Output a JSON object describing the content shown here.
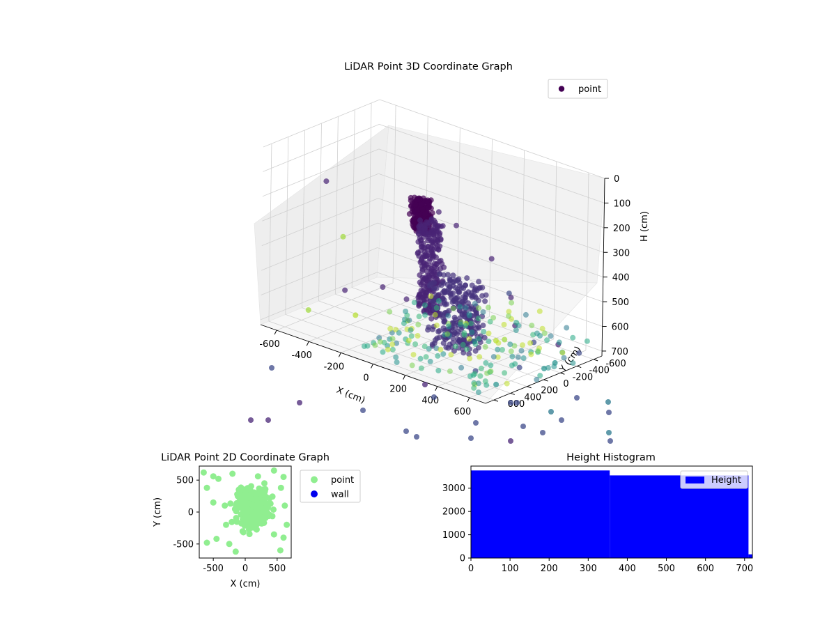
{
  "chart_data": [
    {
      "type": "scatter",
      "subtype": "3d",
      "title": "LiDAR Point 3D Coordinate Graph",
      "xlabel": "X (cm)",
      "ylabel": "Y (cm)",
      "zlabel": "H (cm)",
      "xlim": [
        -700,
        700
      ],
      "ylim": [
        -700,
        700
      ],
      "zlim": [
        0,
        720
      ],
      "z_axis_inverted": true,
      "xticks": [
        -600,
        -400,
        -200,
        0,
        200,
        400,
        600
      ],
      "yticks": [
        -600,
        -400,
        -200,
        0,
        200,
        400,
        600
      ],
      "zticks": [
        0,
        100,
        200,
        300,
        400,
        500,
        600,
        700
      ],
      "grid": true,
      "legend": [
        "point"
      ],
      "legend_position": "top-right",
      "colormap": "viridis",
      "series": [
        {
          "name": "point",
          "color": "#440154",
          "clusters": [
            {
              "x": [
                -60,
                40
              ],
              "y": [
                80,
                180
              ],
              "h": [
                130,
                260
              ],
              "color": "#440154"
            },
            {
              "x": [
                -30,
                90
              ],
              "y": [
                20,
                150
              ],
              "h": [
                220,
                600
              ],
              "color": "#482475"
            },
            {
              "x": [
                60,
                330
              ],
              "y": [
                -40,
                180
              ],
              "h": [
                420,
                700
              ],
              "color": "#46337e"
            }
          ],
          "points": [
            {
              "x": -450,
              "y": 420,
              "h": 120,
              "color": "#482475"
            },
            {
              "x": -300,
              "y": 500,
              "h": 300,
              "color": "#9fda3a"
            },
            {
              "x": 300,
              "y": 520,
              "h": 60,
              "color": "#482475"
            },
            {
              "x": 430,
              "y": 560,
              "h": 80,
              "color": "#482475"
            },
            {
              "x": 560,
              "y": 380,
              "h": 210,
              "color": "#482475"
            },
            {
              "x": 600,
              "y": 240,
              "h": 360,
              "color": "#3e4a89"
            },
            {
              "x": 520,
              "y": 60,
              "h": 420,
              "color": "#482475"
            },
            {
              "x": -580,
              "y": -80,
              "h": 660,
              "color": "#482475"
            },
            {
              "x": -520,
              "y": -420,
              "h": 680,
              "color": "#482475"
            },
            {
              "x": -300,
              "y": -280,
              "h": 660,
              "color": "#482475"
            },
            {
              "x": -620,
              "y": 280,
              "h": 700,
              "color": "#9fda3a"
            },
            {
              "x": -420,
              "y": 100,
              "h": 700,
              "color": "#b5de2b"
            },
            {
              "x": -200,
              "y": -100,
              "h": 700,
              "color": "#a0da39"
            },
            {
              "x": 20,
              "y": -380,
              "h": 700,
              "color": "#9fda3a"
            },
            {
              "x": 300,
              "y": -300,
              "h": 690,
              "color": "#9fda3a"
            },
            {
              "x": 500,
              "y": -560,
              "h": 700,
              "color": "#482475"
            },
            {
              "x": 420,
              "y": -420,
              "h": 690,
              "color": "#3e4a89"
            },
            {
              "x": 200,
              "y": -620,
              "h": 700,
              "color": "#482475"
            },
            {
              "x": 640,
              "y": -540,
              "h": 700,
              "color": "#3e4a89"
            },
            {
              "x": 600,
              "y": 100,
              "h": 680,
              "color": "#3e4a89"
            },
            {
              "x": 440,
              "y": 320,
              "h": 700,
              "color": "#3e4a89"
            },
            {
              "x": 380,
              "y": -40,
              "h": 640,
              "color": "#b5de2b"
            },
            {
              "x": 640,
              "y": -250,
              "h": 700,
              "color": "#21918c"
            },
            {
              "x": 650,
              "y": -100,
              "h": 700,
              "color": "#21918c"
            },
            {
              "x": 620,
              "y": 420,
              "h": 700,
              "color": "#21918c"
            }
          ]
        }
      ]
    },
    {
      "type": "scatter",
      "title": "LiDAR Point 2D Coordinate Graph",
      "xlabel": "X (cm)",
      "ylabel": "Y (cm)",
      "xlim": [
        -720,
        720
      ],
      "ylim": [
        -720,
        720
      ],
      "xticks": [
        -500,
        0,
        500
      ],
      "yticks": [
        -500,
        0,
        500
      ],
      "legend": [
        "point",
        "wall"
      ],
      "legend_position": "outside-right",
      "series": [
        {
          "name": "point",
          "color": "#90ee90",
          "cluster": {
            "center": [
              120,
              80
            ],
            "spread": [
              260,
              300
            ]
          },
          "points": [
            [
              -650,
              620
            ],
            [
              -500,
              560
            ],
            [
              -420,
              520
            ],
            [
              -600,
              380
            ],
            [
              -200,
              600
            ],
            [
              450,
              650
            ],
            [
              600,
              550
            ],
            [
              560,
              380
            ],
            [
              -300,
              -200
            ],
            [
              -450,
              -420
            ],
            [
              -600,
              -480
            ],
            [
              -150,
              -620
            ],
            [
              -250,
              -500
            ],
            [
              450,
              -350
            ],
            [
              600,
              -400
            ],
            [
              550,
              -600
            ],
            [
              650,
              -200
            ],
            [
              -100,
              350
            ],
            [
              200,
              560
            ],
            [
              300,
              450
            ],
            [
              -500,
              150
            ],
            [
              620,
              100
            ]
          ]
        },
        {
          "name": "wall",
          "color": "#0000ee",
          "points": []
        }
      ]
    },
    {
      "type": "bar",
      "subtype": "histogram",
      "title": "Height Histogram",
      "xlim": [
        0,
        720
      ],
      "ylim": [
        0,
        3950
      ],
      "xticks": [
        0,
        100,
        200,
        300,
        400,
        500,
        600,
        700
      ],
      "yticks": [
        0,
        1000,
        2000,
        3000
      ],
      "legend": [
        "Height"
      ],
      "legend_position": "top-right",
      "series": [
        {
          "name": "Height",
          "color": "#0000ff",
          "bins": [
            {
              "from": 0,
              "to": 355,
              "count": 3760
            },
            {
              "from": 355,
              "to": 710,
              "count": 3550
            },
            {
              "from": 710,
              "to": 720,
              "count": 160
            }
          ]
        }
      ]
    }
  ]
}
